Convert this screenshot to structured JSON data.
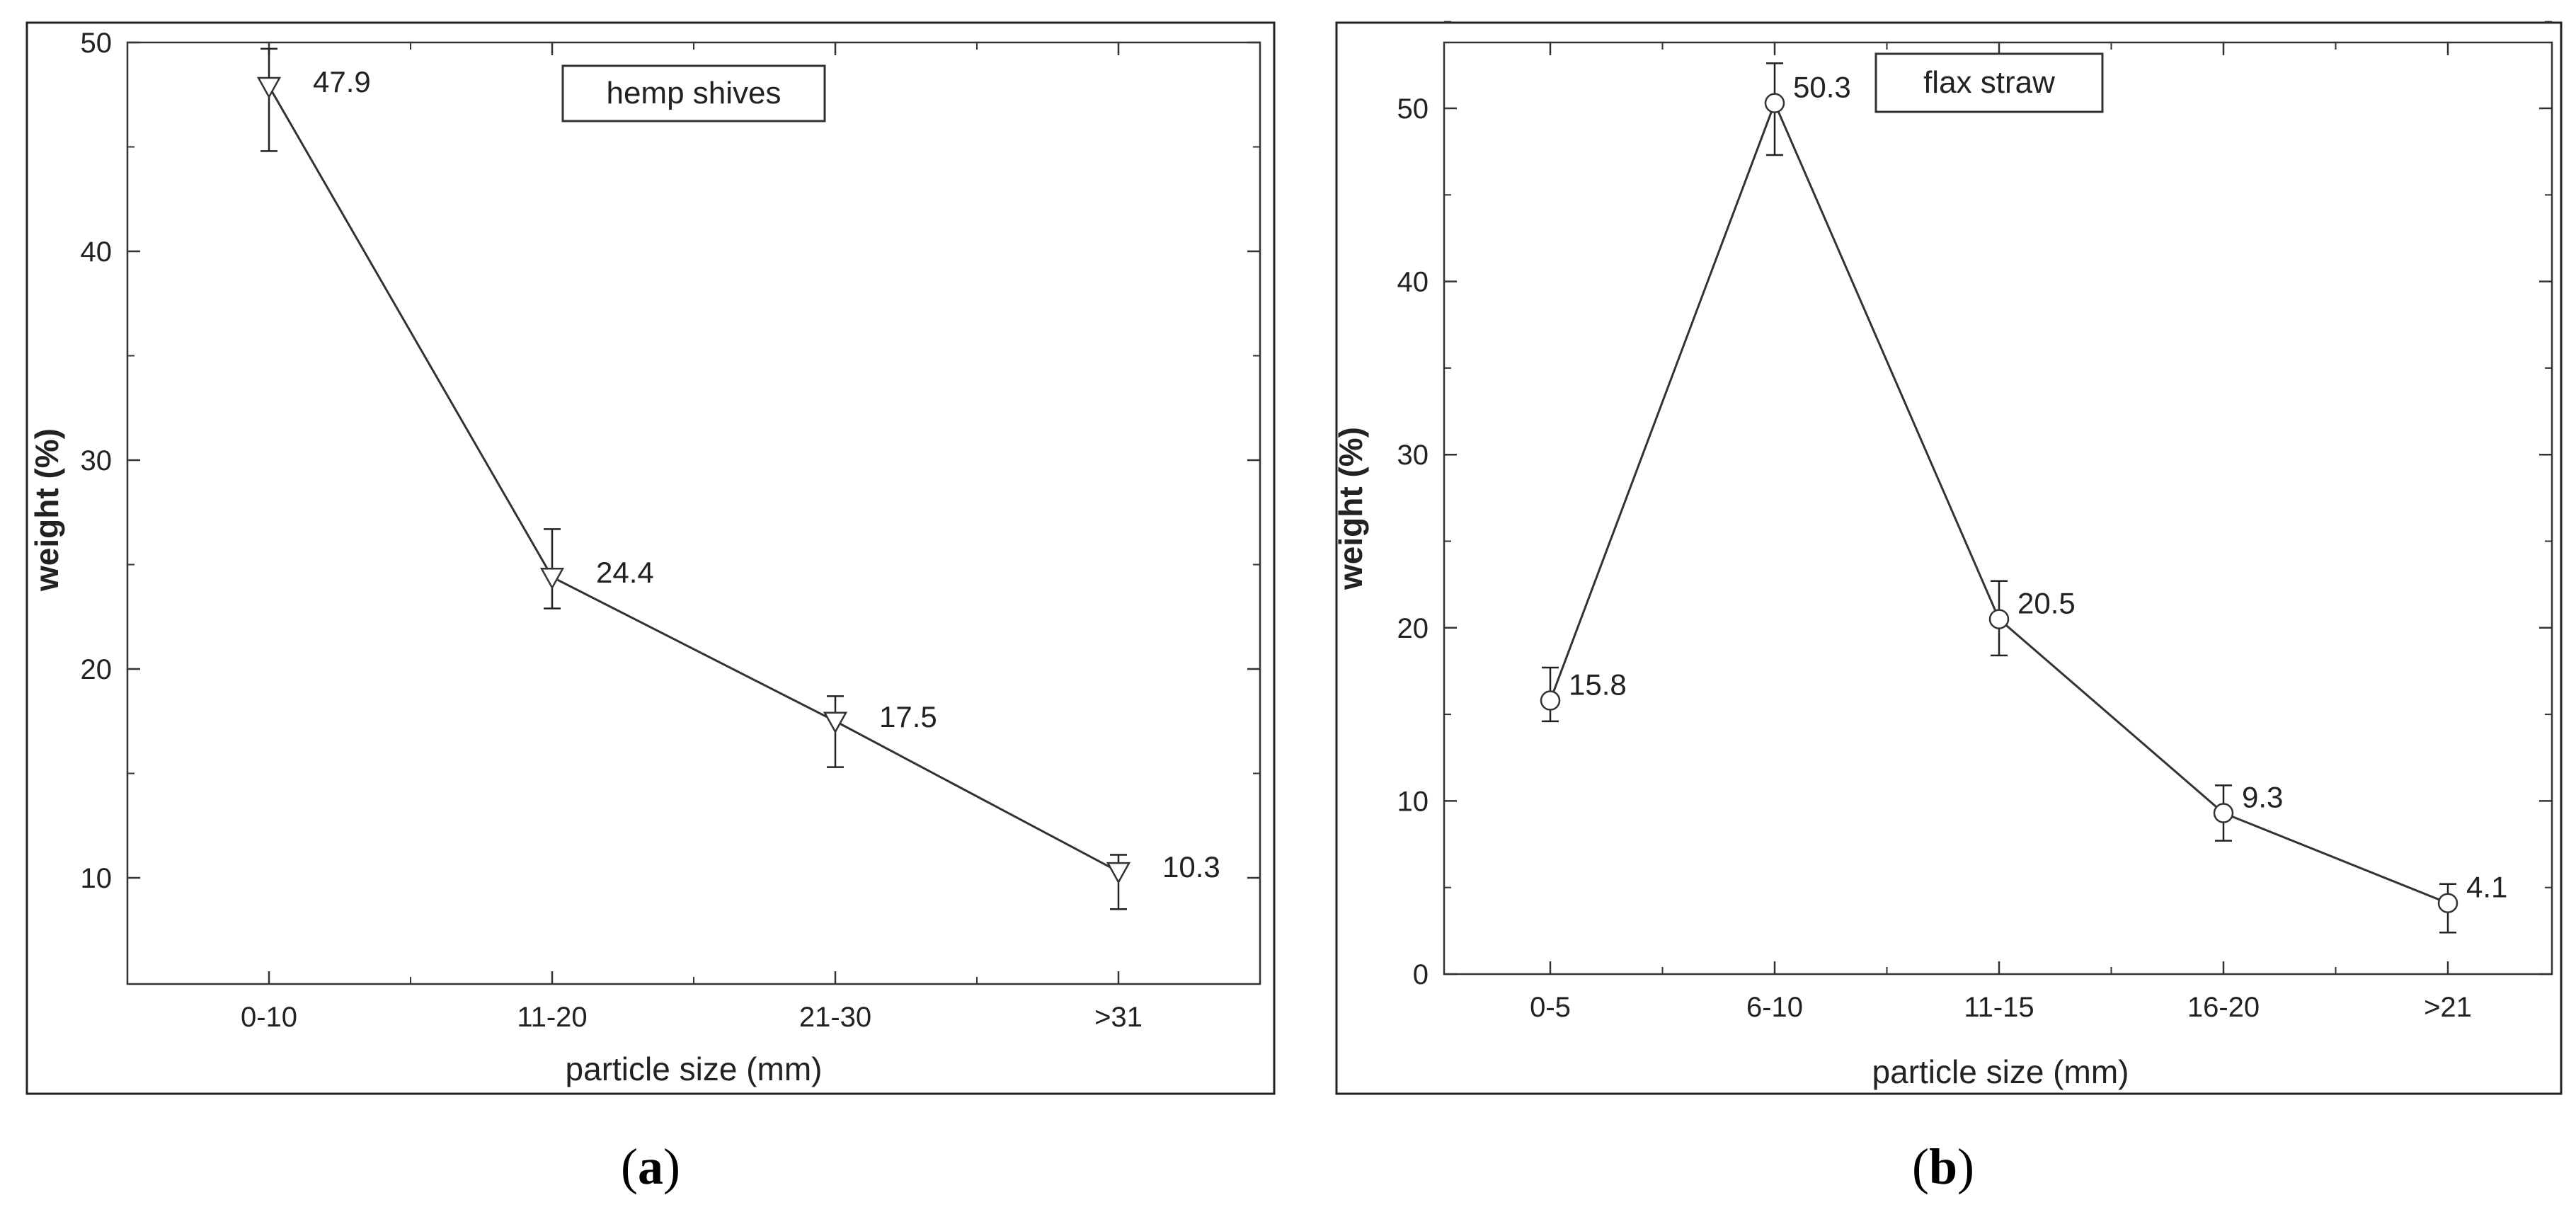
{
  "chart_data": [
    {
      "type": "line",
      "legend_label": "hemp shives",
      "legend_position": "top-center",
      "categories": [
        "0-10",
        "11-20",
        "21-30",
        ">31"
      ],
      "values": [
        47.9,
        24.4,
        17.5,
        10.3
      ],
      "error_low": [
        44.8,
        22.9,
        15.3,
        8.5
      ],
      "error_high": [
        49.7,
        26.7,
        18.7,
        11.1
      ],
      "data_labels": [
        "47.9",
        "24.4",
        "17.5",
        "10.3"
      ],
      "marker": "triangle-down",
      "xlabel": "particle size (mm)",
      "ylabel": "weight (%)",
      "ylim": [
        5,
        50
      ],
      "yticks": [
        10,
        20,
        30,
        40,
        50
      ],
      "grid": false,
      "caption": "(a)"
    },
    {
      "type": "line",
      "legend_label": "flax straw",
      "legend_position": "top-center",
      "categories": [
        "0-5",
        "6-10",
        "11-15",
        "16-20",
        ">21"
      ],
      "values": [
        15.8,
        50.3,
        20.5,
        9.3,
        4.1
      ],
      "error_low": [
        14.6,
        47.3,
        18.4,
        7.7,
        2.4
      ],
      "error_high": [
        17.7,
        52.6,
        22.7,
        10.9,
        5.2
      ],
      "data_labels": [
        "15.8",
        "50.3",
        "20.5",
        "9.3",
        "4.1"
      ],
      "marker": "circle",
      "xlabel": "particle size (mm)",
      "ylabel": "weight (%)",
      "ylim": [
        0,
        55
      ],
      "yticks": [
        0,
        10,
        20,
        30,
        40,
        50
      ],
      "grid": false,
      "caption": "(b)"
    }
  ]
}
